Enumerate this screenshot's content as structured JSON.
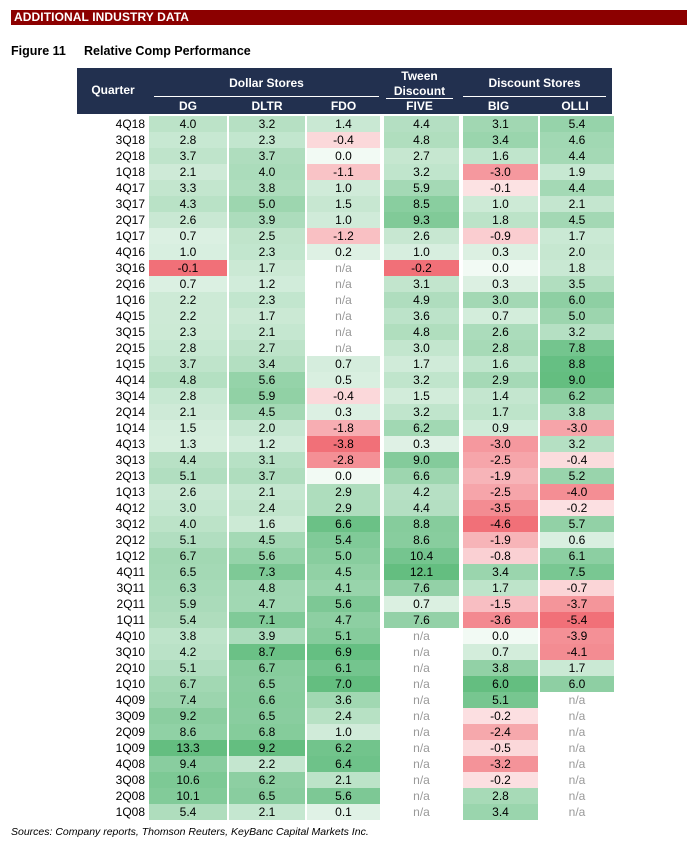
{
  "banner": "ADDITIONAL INDUSTRY DATA",
  "figure": {
    "number": "Figure 11",
    "title": "Relative Comp Performance"
  },
  "header": {
    "quarter": "Quarter",
    "group_dollar": "Dollar Stores",
    "group_tween_line1": "Tween",
    "group_tween_line2": "Discount",
    "group_discount": "Discount Stores",
    "columns": [
      "DG",
      "DLTR",
      "FDO",
      "FIVE",
      "BIG",
      "OLLI"
    ]
  },
  "rows": [
    [
      "4Q18",
      "4.0",
      "3.2",
      "1.4",
      "4.4",
      "3.1",
      "5.4"
    ],
    [
      "3Q18",
      "2.8",
      "2.3",
      "-0.4",
      "4.8",
      "3.4",
      "4.6"
    ],
    [
      "2Q18",
      "3.7",
      "3.7",
      "0.0",
      "2.7",
      "1.6",
      "4.4"
    ],
    [
      "1Q18",
      "2.1",
      "4.0",
      "-1.1",
      "3.2",
      "-3.0",
      "1.9"
    ],
    [
      "4Q17",
      "3.3",
      "3.8",
      "1.0",
      "5.9",
      "-0.1",
      "4.4"
    ],
    [
      "3Q17",
      "4.3",
      "5.0",
      "1.5",
      "8.5",
      "1.0",
      "2.1"
    ],
    [
      "2Q17",
      "2.6",
      "3.9",
      "1.0",
      "9.3",
      "1.8",
      "4.5"
    ],
    [
      "1Q17",
      "0.7",
      "2.5",
      "-1.2",
      "2.6",
      "-0.9",
      "1.7"
    ],
    [
      "4Q16",
      "1.0",
      "2.3",
      "0.2",
      "1.0",
      "0.3",
      "2.0"
    ],
    [
      "3Q16",
      "-0.1",
      "1.7",
      "n/a",
      "-0.2",
      "0.0",
      "1.8"
    ],
    [
      "2Q16",
      "0.7",
      "1.2",
      "n/a",
      "3.1",
      "0.3",
      "3.5"
    ],
    [
      "1Q16",
      "2.2",
      "2.3",
      "n/a",
      "4.9",
      "3.0",
      "6.0"
    ],
    [
      "4Q15",
      "2.2",
      "1.7",
      "n/a",
      "3.6",
      "0.7",
      "5.0"
    ],
    [
      "3Q15",
      "2.3",
      "2.1",
      "n/a",
      "4.8",
      "2.6",
      "3.2"
    ],
    [
      "2Q15",
      "2.8",
      "2.7",
      "n/a",
      "3.0",
      "2.8",
      "7.8"
    ],
    [
      "1Q15",
      "3.7",
      "3.4",
      "0.7",
      "1.7",
      "1.6",
      "8.8"
    ],
    [
      "4Q14",
      "4.8",
      "5.6",
      "0.5",
      "3.2",
      "2.9",
      "9.0"
    ],
    [
      "3Q14",
      "2.8",
      "5.9",
      "-0.4",
      "1.5",
      "1.4",
      "6.2"
    ],
    [
      "2Q14",
      "2.1",
      "4.5",
      "0.3",
      "3.2",
      "1.7",
      "3.8"
    ],
    [
      "1Q14",
      "1.5",
      "2.0",
      "-1.8",
      "6.2",
      "0.9",
      "-3.0"
    ],
    [
      "4Q13",
      "1.3",
      "1.2",
      "-3.8",
      "0.3",
      "-3.0",
      "3.2"
    ],
    [
      "3Q13",
      "4.4",
      "3.1",
      "-2.8",
      "9.0",
      "-2.5",
      "-0.4"
    ],
    [
      "2Q13",
      "5.1",
      "3.7",
      "0.0",
      "6.6",
      "-1.9",
      "5.2"
    ],
    [
      "1Q13",
      "2.6",
      "2.1",
      "2.9",
      "4.2",
      "-2.5",
      "-4.0"
    ],
    [
      "4Q12",
      "3.0",
      "2.4",
      "2.9",
      "4.4",
      "-3.5",
      "-0.2"
    ],
    [
      "3Q12",
      "4.0",
      "1.6",
      "6.6",
      "8.8",
      "-4.6",
      "5.7"
    ],
    [
      "2Q12",
      "5.1",
      "4.5",
      "5.4",
      "8.6",
      "-1.9",
      "0.6"
    ],
    [
      "1Q12",
      "6.7",
      "5.6",
      "5.0",
      "10.4",
      "-0.8",
      "6.1"
    ],
    [
      "4Q11",
      "6.5",
      "7.3",
      "4.5",
      "12.1",
      "3.4",
      "7.5"
    ],
    [
      "3Q11",
      "6.3",
      "4.8",
      "4.1",
      "7.6",
      "1.7",
      "-0.7"
    ],
    [
      "2Q11",
      "5.9",
      "4.7",
      "5.6",
      "0.7",
      "-1.5",
      "-3.7"
    ],
    [
      "1Q11",
      "5.4",
      "7.1",
      "4.7",
      "7.6",
      "-3.6",
      "-5.4"
    ],
    [
      "4Q10",
      "3.8",
      "3.9",
      "5.1",
      "n/a",
      "0.0",
      "-3.9"
    ],
    [
      "3Q10",
      "4.2",
      "8.7",
      "6.9",
      "n/a",
      "0.7",
      "-4.1"
    ],
    [
      "2Q10",
      "5.1",
      "6.7",
      "6.1",
      "n/a",
      "3.8",
      "1.7"
    ],
    [
      "1Q10",
      "6.7",
      "6.5",
      "7.0",
      "n/a",
      "6.0",
      "6.0"
    ],
    [
      "4Q09",
      "7.4",
      "6.6",
      "3.6",
      "n/a",
      "5.1",
      "n/a"
    ],
    [
      "3Q09",
      "9.2",
      "6.5",
      "2.4",
      "n/a",
      "-0.2",
      "n/a"
    ],
    [
      "2Q09",
      "8.6",
      "6.8",
      "1.0",
      "n/a",
      "-2.4",
      "n/a"
    ],
    [
      "1Q09",
      "13.3",
      "9.2",
      "6.2",
      "n/a",
      "-0.5",
      "n/a"
    ],
    [
      "4Q08",
      "9.4",
      "2.2",
      "6.4",
      "n/a",
      "-3.2",
      "n/a"
    ],
    [
      "3Q08",
      "10.6",
      "6.2",
      "2.1",
      "n/a",
      "-0.2",
      "n/a"
    ],
    [
      "2Q08",
      "10.1",
      "6.5",
      "5.6",
      "n/a",
      "2.8",
      "n/a"
    ],
    [
      "1Q08",
      "5.4",
      "2.1",
      "0.1",
      "n/a",
      "3.4",
      "n/a"
    ]
  ],
  "colors": {
    "banner": "#8c0000",
    "header": "#22304f",
    "positive_max": "#5dbb7b",
    "negative_max": "#f06a72",
    "na_text": "#999999"
  },
  "source": "Sources: Company reports, Thomson Reuters, KeyBanc Capital Markets Inc."
}
